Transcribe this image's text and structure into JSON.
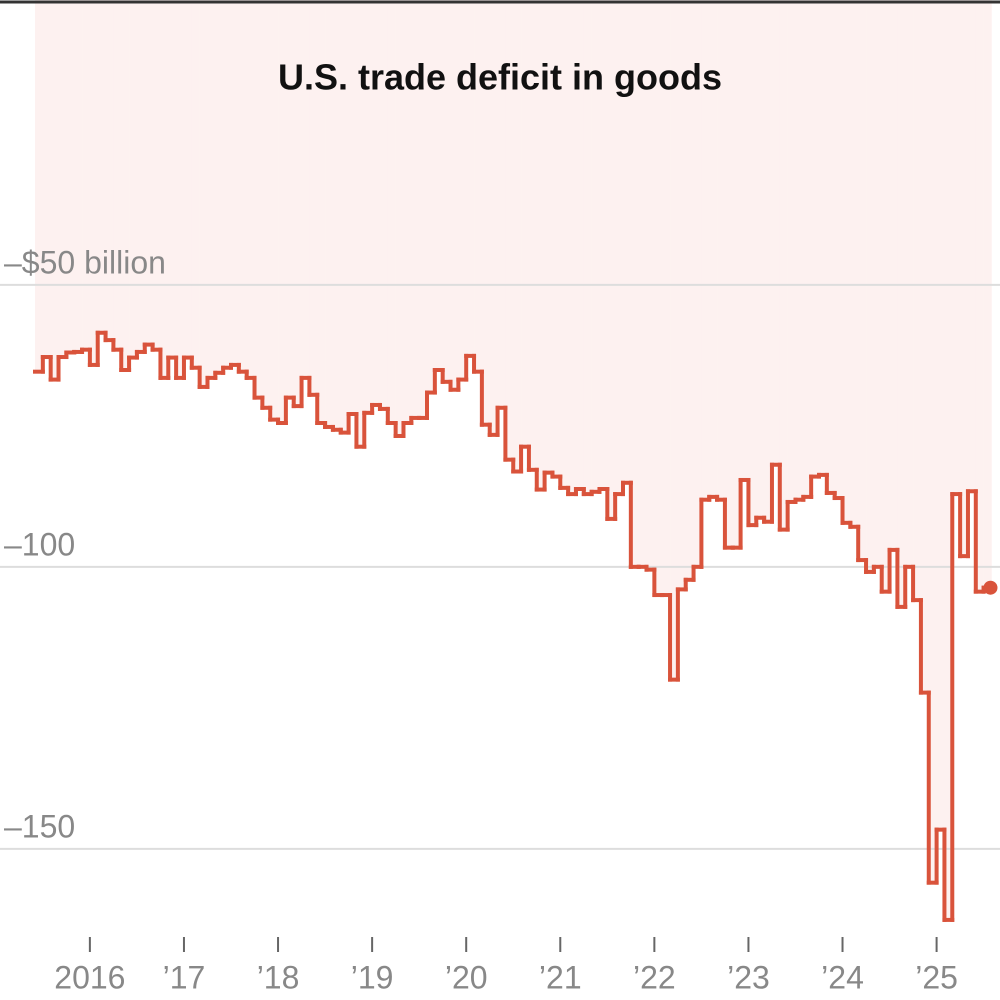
{
  "chart_data": {
    "type": "step",
    "title": "U.S. trade deficit in goods",
    "categories": [
      null,
      null,
      null,
      null,
      null,
      null,
      null,
      "2016",
      null,
      null,
      null,
      null,
      null,
      null,
      null,
      null,
      null,
      null,
      null,
      "’17",
      null,
      null,
      null,
      null,
      null,
      null,
      null,
      null,
      null,
      null,
      null,
      "’18",
      null,
      null,
      null,
      null,
      null,
      null,
      null,
      null,
      null,
      null,
      null,
      "’19",
      null,
      null,
      null,
      null,
      null,
      null,
      null,
      null,
      null,
      null,
      null,
      "’20",
      null,
      null,
      null,
      null,
      null,
      null,
      null,
      null,
      null,
      null,
      null,
      "’21",
      null,
      null,
      null,
      null,
      null,
      null,
      null,
      null,
      null,
      null,
      null,
      "’22",
      null,
      null,
      null,
      null,
      null,
      null,
      null,
      null,
      null,
      null,
      null,
      "’23",
      null,
      null,
      null,
      null,
      null,
      null,
      null,
      null,
      null,
      null,
      null,
      "’24",
      null,
      null,
      null,
      null,
      null,
      null,
      null,
      null,
      null,
      null,
      null,
      "’25",
      null,
      null,
      null,
      null,
      null,
      null
    ],
    "values": [
      -65.4,
      -62.8,
      -66.8,
      -62.8,
      -62,
      -61.9,
      -61.5,
      -64.2,
      -58.5,
      -59.8,
      -61.5,
      -65.1,
      -62.9,
      -61.9,
      -60.6,
      -61.5,
      -66.5,
      -62.9,
      -66.5,
      -62.9,
      -64.7,
      -68.1,
      -66.5,
      -65.6,
      -64.7,
      -64.2,
      -65.4,
      -66.5,
      -70,
      -71.8,
      -73.9,
      -74.5,
      -70,
      -71.5,
      -66.5,
      -69.5,
      -74.5,
      -75.2,
      -75.7,
      -76.2,
      -72.9,
      -78.7,
      -72.7,
      -71.3,
      -72,
      -74.5,
      -76.8,
      -74.5,
      -73.6,
      -73.6,
      -69.1,
      -65.1,
      -67.2,
      -68.6,
      -66.8,
      -62.6,
      -65.4,
      -74.8,
      -76.6,
      -71.8,
      -81,
      -83.1,
      -78.7,
      -82.8,
      -86.3,
      -83.3,
      -84,
      -86,
      -87.1,
      -86.2,
      -87.1,
      -86.7,
      -86.2,
      -91.5,
      -87.1,
      -85.1,
      -100,
      -100,
      -100.5,
      -105,
      -105,
      -120,
      -104,
      -102.3,
      -100,
      -88.1,
      -87.6,
      -88.1,
      -96.6,
      -96.6,
      -84.6,
      -92.6,
      -91.3,
      -92,
      -81.9,
      -93.4,
      -88.5,
      -88.1,
      -87.6,
      -84,
      -83.7,
      -86.9,
      -87.8,
      -92.2,
      -92.9,
      -98.8,
      -100.9,
      -100,
      -104.4,
      -97,
      -107.1,
      -100,
      -105.9,
      -122.3,
      -156,
      -146.6,
      -162.6,
      -87.1,
      -98.1,
      -86.6,
      -104.4,
      -103.7
    ],
    "color": "#d9533b",
    "area_color": "#fdf1f0",
    "ylim": [
      -176.8,
      0.5
    ],
    "yticks": [
      {
        "value": -50,
        "label": "–$50 billion"
      },
      {
        "value": -100,
        "label": "–100"
      },
      {
        "value": -150,
        "label": "–150"
      }
    ],
    "grid": true
  }
}
